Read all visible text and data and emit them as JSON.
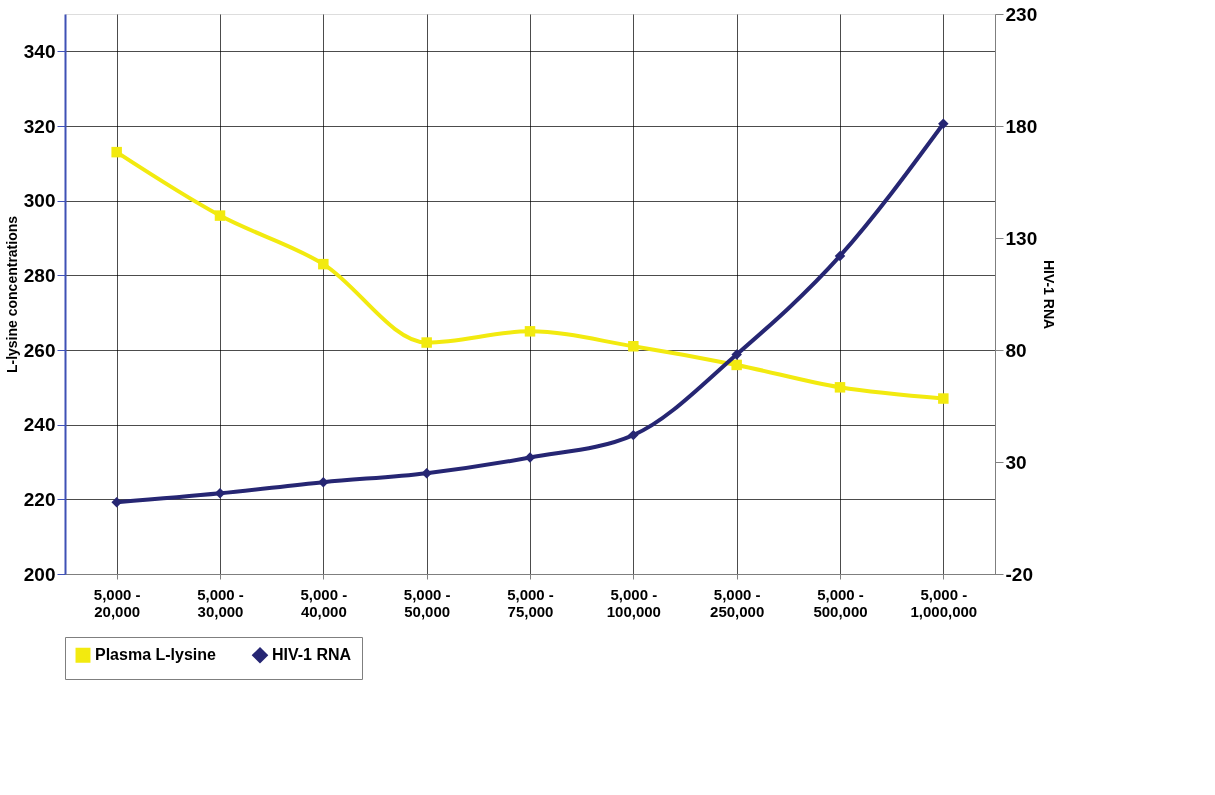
{
  "chart_data": {
    "type": "line",
    "ylabel": "L-lysine concentrations",
    "y2label": "HIV-1 RNA",
    "categories": [
      "5,000 - 20,000",
      "5,000 - 30,000",
      "5,000 - 40,000",
      "5,000 - 50,000",
      "5,000 - 75,000",
      "5,000 - 100,000",
      "5,000 - 250,000",
      "5,000 - 500,000",
      "5,000 - 1,000,000"
    ],
    "series": [
      {
        "name": "Plasma L-lysine",
        "color": "#f2ea0f",
        "marker": "square",
        "values": [
          313,
          296,
          283,
          262,
          265,
          261,
          256,
          250,
          247
        ]
      },
      {
        "name": "HIV-1 RNA",
        "color": "#262673",
        "marker": "diamond",
        "axis": "y2",
        "values": [
          12,
          16,
          21,
          25,
          32,
          42,
          78,
          122,
          181
        ]
      }
    ],
    "ylim": [
      200,
      350
    ],
    "yticks": [
      200,
      220,
      240,
      260,
      280,
      300,
      320,
      340
    ],
    "y2lim": [
      -20,
      230
    ],
    "y2ticks": [
      -20,
      30,
      80,
      130,
      180,
      230
    ],
    "grid": true,
    "legend": "bottom",
    "line_style": "solid"
  }
}
